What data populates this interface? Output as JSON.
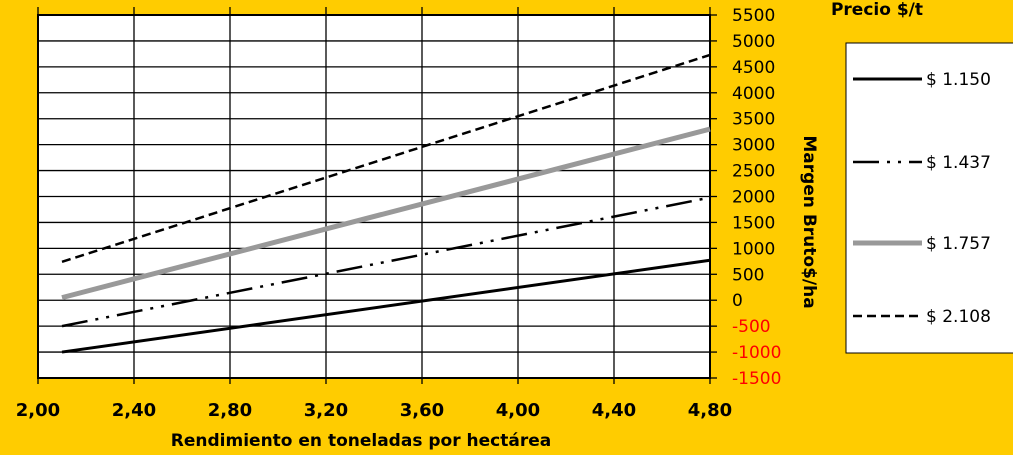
{
  "chart_data": {
    "type": "line",
    "xlabel": "Rendimiento en toneladas por hectárea",
    "ylabel": "Margen Bruto$/ha",
    "xlim": [
      2.0,
      4.8
    ],
    "ylim": [
      -1500,
      5500
    ],
    "x_ticks": [
      "2,00",
      "2,40",
      "2,80",
      "3,20",
      "3,60",
      "4,00",
      "4,40",
      "4,80"
    ],
    "y_ticks": [
      {
        "value": 5500,
        "label": "5500"
      },
      {
        "value": 5000,
        "label": "5000"
      },
      {
        "value": 4500,
        "label": "4500"
      },
      {
        "value": 4000,
        "label": "4000"
      },
      {
        "value": 3500,
        "label": "3500"
      },
      {
        "value": 3000,
        "label": "3000"
      },
      {
        "value": 2500,
        "label": "2500"
      },
      {
        "value": 2000,
        "label": "2000"
      },
      {
        "value": 1500,
        "label": "1500"
      },
      {
        "value": 1000,
        "label": "1000"
      },
      {
        "value": 500,
        "label": "500"
      },
      {
        "value": 0,
        "label": "0"
      },
      {
        "value": -500,
        "label": "-500"
      },
      {
        "value": -1000,
        "label": "-1000"
      },
      {
        "value": -1500,
        "label": "-1500"
      }
    ],
    "negative_tick_color": "#FF0000",
    "y_axis_side": "right",
    "grid": true,
    "legend": {
      "title": "Precio $/t",
      "placement": "right"
    },
    "series": [
      {
        "name": "$ 1.150",
        "style": "solid",
        "color": "#000000",
        "x": [
          2.1,
          4.8
        ],
        "y": [
          -1000,
          770
        ]
      },
      {
        "name": "$ 1.437",
        "style": "dash-dot-dot",
        "color": "#000000",
        "x": [
          2.1,
          4.8
        ],
        "y": [
          -500,
          1980
        ]
      },
      {
        "name": "$ 1.757",
        "style": "thick-gray",
        "color": "#999999",
        "x": [
          2.1,
          4.8
        ],
        "y": [
          50,
          3300
        ]
      },
      {
        "name": "$ 2.108",
        "style": "dashed",
        "color": "#000000",
        "x": [
          2.1,
          4.8
        ],
        "y": [
          740,
          4730
        ]
      }
    ]
  }
}
